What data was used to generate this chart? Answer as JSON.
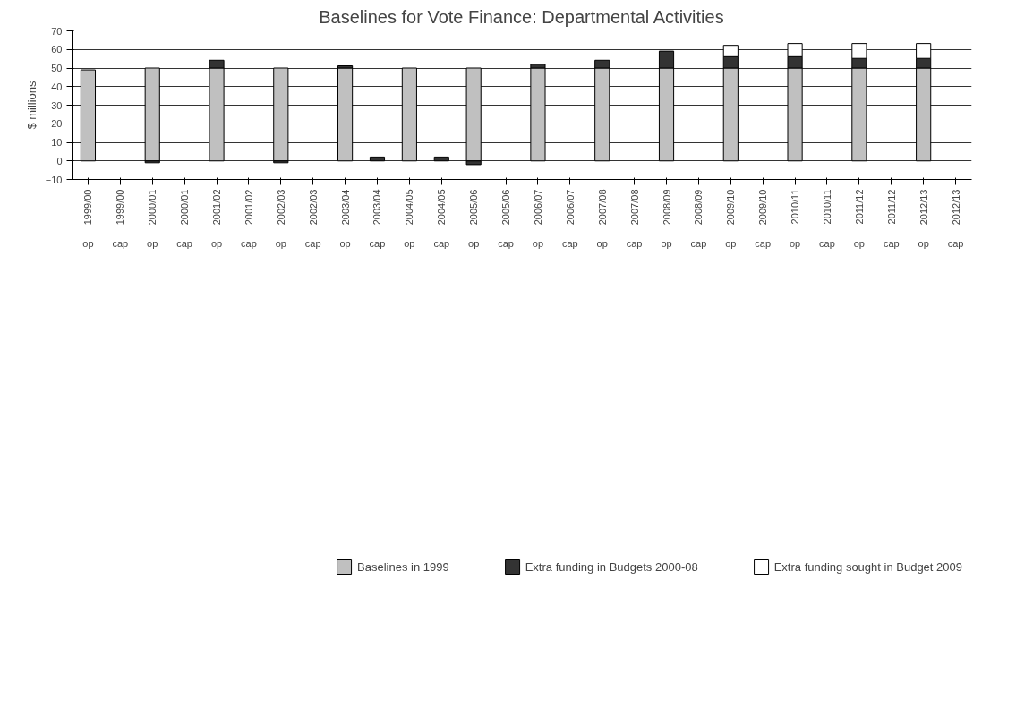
{
  "chart_data": {
    "type": "bar",
    "title": "Baselines for Vote Finance: Departmental Activities",
    "ylabel": "$ millions",
    "categories": [
      "1999/00\nop",
      "1999/00\ncap",
      "2000/01\nop",
      "2000/01\ncap",
      "2001/02\nop",
      "2001/02\ncap",
      "2002/03\nop",
      "2002/03\ncap",
      "2003/04\nop",
      "2003/04\ncap",
      "2004/05\nop",
      "2004/05\ncap",
      "2005/06\nop",
      "2005/06\ncap",
      "2006/07\nop",
      "2006/07\ncap",
      "2007/08\nop",
      "2007/08\ncap",
      "2008/09\nop",
      "2008/09\ncap",
      "2009/10\nop",
      "2009/10\ncap",
      "2010/11\nop",
      "2010/11\ncap",
      "2011/12\nop",
      "2011/12\ncap",
      "2012/13\nop",
      "2012/13\ncap"
    ],
    "stacked": true,
    "series": [
      {
        "name": "Baselines in 1999",
        "color": "#c0c0c0",
        "values": [
          49,
          null,
          50,
          null,
          50,
          null,
          50,
          null,
          50,
          null,
          50,
          null,
          50,
          null,
          50,
          null,
          50,
          null,
          50,
          null,
          50,
          null,
          50,
          null,
          50,
          null,
          50,
          null
        ]
      },
      {
        "name": "Extra funding in Budgets 2000-08",
        "color": "#333333",
        "values": [
          null,
          null,
          -1,
          null,
          4.2,
          null,
          -1,
          null,
          1.2,
          2.1,
          null,
          2.1,
          -2,
          null,
          2.1,
          null,
          4.2,
          null,
          9.1,
          null,
          6.1,
          null,
          6.1,
          null,
          5.2,
          null,
          5.2,
          null
        ]
      },
      {
        "name": "Extra funding sought in Budget 2009",
        "color": "#ffffff",
        "values": [
          null,
          null,
          null,
          null,
          null,
          null,
          null,
          null,
          null,
          null,
          null,
          null,
          null,
          null,
          null,
          null,
          null,
          null,
          null,
          null,
          6.1,
          null,
          7.1,
          null,
          8,
          null,
          8,
          null
        ]
      }
    ],
    "ylim": [
      -10,
      70
    ],
    "yticks": [
      -10,
      0,
      10,
      20,
      30,
      40,
      50,
      60,
      70
    ],
    "grid": "y",
    "legend": "bottom"
  }
}
